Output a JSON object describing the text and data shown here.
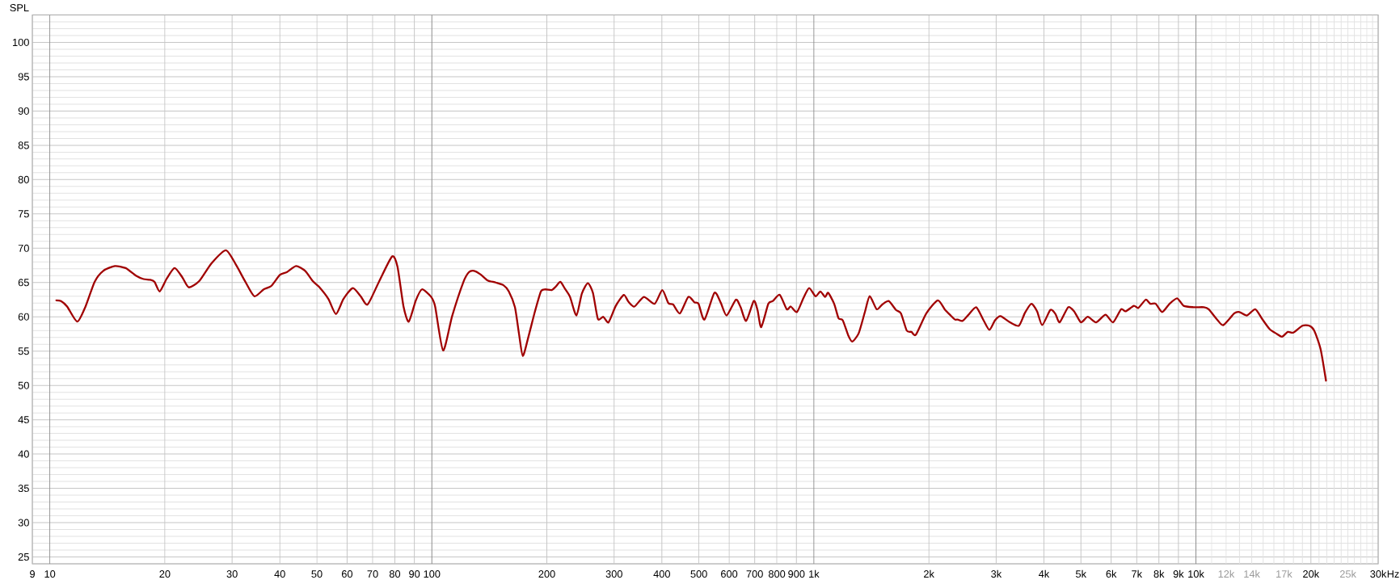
{
  "chart_data": {
    "type": "line",
    "ylabel": "SPL",
    "xlabel": "Hz",
    "x": [
      10.4,
      10.7,
      11.1,
      11.8,
      12.4,
      13.1,
      13.8,
      14.8,
      15.8,
      16.8,
      17.6,
      18.3,
      18.8,
      19.4,
      20.2,
      21.2,
      22.2,
      23.1,
      24.6,
      26.5,
      28.9,
      30.7,
      32.5,
      34.3,
      36.3,
      38.0,
      40.0,
      41.7,
      44.1,
      46.6,
      48.8,
      50.6,
      53.6,
      56.1,
      58.7,
      62.1,
      65.1,
      67.9,
      72.7,
      78.7,
      81.3,
      84.3,
      87.0,
      90.8,
      94.2,
      99.6,
      102,
      107,
      113,
      121,
      125,
      129,
      134,
      140,
      147,
      154,
      159,
      165,
      169,
      173,
      179,
      186,
      193,
      198,
      206,
      211,
      217,
      223,
      230,
      239,
      247,
      256,
      264,
      272,
      281,
      290,
      303,
      318,
      327,
      339,
      359,
      383,
      401,
      416,
      428,
      446,
      469,
      487,
      499,
      517,
      549,
      570,
      591,
      625,
      643,
      665,
      696,
      712,
      728,
      760,
      781,
      814,
      849,
      870,
      903,
      940,
      972,
      1010,
      1040,
      1070,
      1090,
      1130,
      1160,
      1190,
      1230,
      1260,
      1310,
      1360,
      1400,
      1460,
      1510,
      1570,
      1640,
      1690,
      1750,
      1800,
      1850,
      1970,
      2110,
      2200,
      2280,
      2340,
      2380,
      2450,
      2540,
      2660,
      2780,
      2880,
      2980,
      3080,
      3260,
      3440,
      3570,
      3710,
      3840,
      3960,
      4160,
      4290,
      4400,
      4630,
      4800,
      5000,
      5210,
      5480,
      5800,
      6070,
      6370,
      6550,
      6880,
      7070,
      7390,
      7600,
      7850,
      8160,
      8530,
      8930,
      9290,
      9860,
      10500,
      10800,
      11400,
      11800,
      12600,
      13000,
      13600,
      14300,
      14900,
      15600,
      16300,
      16800,
      17400,
      18000,
      19000,
      19800,
      20400,
      21200,
      21900
    ],
    "series": [
      {
        "color": "#a00000",
        "values": [
          62.4,
          62.3,
          61.5,
          59.3,
          61.5,
          65.1,
          66.7,
          67.4,
          67.1,
          66.0,
          65.5,
          65.4,
          65.1,
          63.7,
          65.5,
          67.1,
          65.8,
          64.3,
          65.2,
          67.8,
          69.7,
          67.6,
          65.1,
          63.0,
          64.0,
          64.5,
          66.1,
          66.5,
          67.4,
          66.7,
          65.2,
          64.4,
          62.6,
          60.4,
          62.6,
          64.2,
          63.0,
          61.8,
          65.1,
          68.8,
          67.3,
          61.5,
          59.3,
          62.4,
          64.0,
          62.9,
          61.5,
          55.1,
          60.1,
          65.1,
          66.5,
          66.7,
          66.2,
          65.3,
          65.0,
          64.6,
          63.7,
          61.4,
          57.6,
          54.3,
          57.1,
          60.7,
          63.7,
          64.0,
          63.9,
          64.4,
          65.1,
          64.1,
          62.9,
          60.2,
          63.4,
          64.9,
          63.5,
          59.7,
          60.0,
          59.2,
          61.6,
          63.2,
          62.2,
          61.5,
          62.9,
          61.9,
          63.9,
          62.0,
          61.8,
          60.5,
          62.9,
          62.1,
          61.9,
          59.6,
          63.5,
          62.1,
          60.2,
          62.5,
          61.4,
          59.4,
          62.3,
          61.0,
          58.5,
          61.9,
          62.3,
          63.2,
          61.1,
          61.5,
          60.7,
          62.8,
          64.2,
          63.0,
          63.7,
          62.9,
          63.5,
          61.9,
          59.8,
          59.5,
          57.3,
          56.4,
          57.6,
          60.7,
          63.0,
          61.1,
          61.8,
          62.3,
          61.0,
          60.5,
          58.0,
          57.8,
          57.4,
          60.5,
          62.4,
          61.1,
          60.2,
          59.6,
          59.6,
          59.4,
          60.3,
          61.4,
          59.5,
          58.1,
          59.5,
          60.1,
          59.2,
          58.7,
          60.6,
          61.9,
          60.8,
          58.8,
          61.0,
          60.4,
          59.2,
          61.4,
          60.8,
          59.2,
          60.0,
          59.2,
          60.3,
          59.2,
          61.1,
          60.8,
          61.6,
          61.3,
          62.5,
          61.9,
          61.9,
          60.7,
          61.9,
          62.7,
          61.6,
          61.4,
          61.4,
          61.1,
          59.5,
          58.8,
          60.5,
          60.7,
          60.2,
          61.1,
          59.7,
          58.2,
          57.5,
          57.1,
          57.8,
          57.7,
          58.7,
          58.7,
          58.0,
          55.3,
          50.7
        ]
      }
    ],
    "xlim": [
      9,
      30000
    ],
    "ylim": [
      24,
      104
    ],
    "xticks": [
      9,
      10,
      20,
      30,
      40,
      50,
      60,
      70,
      80,
      90,
      100,
      200,
      300,
      400,
      500,
      600,
      700,
      800,
      900,
      {
        "value": 1000,
        "label": "1k"
      },
      {
        "value": 2000,
        "label": "2k"
      },
      {
        "value": 3000,
        "label": "3k"
      },
      {
        "value": 4000,
        "label": "4k"
      },
      {
        "value": 5000,
        "label": "5k"
      },
      {
        "value": 6000,
        "label": "6k"
      },
      {
        "value": 7000,
        "label": "7k"
      },
      {
        "value": 8000,
        "label": "8k"
      },
      {
        "value": 9000,
        "label": "9k"
      },
      {
        "value": 10000,
        "label": "10k"
      },
      {
        "value": 12000,
        "label": "12k"
      },
      {
        "value": 14000,
        "label": "14k"
      },
      {
        "value": 17000,
        "label": "17k"
      },
      {
        "value": 20000,
        "label": "20k"
      },
      {
        "value": 25000,
        "label": "25k"
      },
      {
        "value": 30000,
        "label": "30k"
      }
    ],
    "yticks": [
      25,
      30,
      35,
      40,
      45,
      50,
      55,
      60,
      65,
      70,
      75,
      80,
      85,
      90,
      95,
      100
    ],
    "log": "x",
    "grid": true,
    "marker": "none",
    "line_style": "solid"
  }
}
